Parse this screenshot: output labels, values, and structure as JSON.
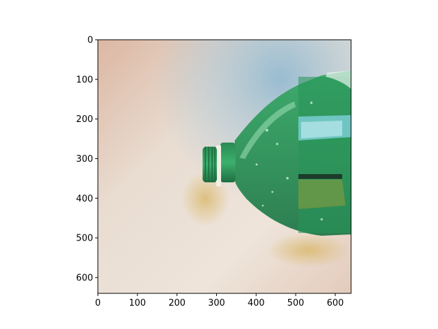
{
  "figure": {
    "subject": "green-plastic-bottle-on-light-surface",
    "colors": {
      "background": "#ffffff",
      "surface_warm": "#e5cbb9",
      "surface_light": "#ece2d8",
      "shadow_blue": "#a9c6d6",
      "bottle_green": "#2f9a5a",
      "bottle_dark": "#1e6b3f",
      "bottle_light": "#5cc083",
      "ring_white": "#f3f1e6",
      "axis": "#000000"
    }
  },
  "axes": {
    "xlim": [
      0,
      640
    ],
    "ylim": [
      640,
      0
    ],
    "xticks": [
      {
        "value": 0,
        "label": "0"
      },
      {
        "value": 100,
        "label": "100"
      },
      {
        "value": 200,
        "label": "200"
      },
      {
        "value": 300,
        "label": "300"
      },
      {
        "value": 400,
        "label": "400"
      },
      {
        "value": 500,
        "label": "500"
      },
      {
        "value": 600,
        "label": "600"
      }
    ],
    "yticks": [
      {
        "value": 0,
        "label": "0"
      },
      {
        "value": 100,
        "label": "100"
      },
      {
        "value": 200,
        "label": "200"
      },
      {
        "value": 300,
        "label": "300"
      },
      {
        "value": 400,
        "label": "400"
      },
      {
        "value": 500,
        "label": "500"
      },
      {
        "value": 600,
        "label": "600"
      }
    ]
  }
}
